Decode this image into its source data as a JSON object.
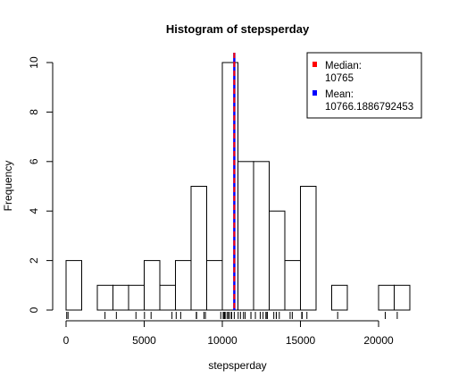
{
  "chart_data": {
    "type": "bar",
    "title": "Histogram of stepsperday",
    "xlabel": "stepsperday",
    "ylabel": "Frequency",
    "xlim": [
      0,
      22000
    ],
    "ylim": [
      0,
      10
    ],
    "x_ticks": [
      "0",
      "5000",
      "10000",
      "15000",
      "20000"
    ],
    "y_ticks": [
      "0",
      "2",
      "4",
      "6",
      "8",
      "10"
    ],
    "bin_width": 1000,
    "bin_starts": [
      0,
      1000,
      2000,
      3000,
      4000,
      5000,
      6000,
      7000,
      8000,
      9000,
      10000,
      11000,
      12000,
      13000,
      14000,
      15000,
      16000,
      17000,
      18000,
      19000,
      20000,
      21000
    ],
    "values": [
      2,
      0,
      1,
      1,
      1,
      2,
      1,
      2,
      5,
      2,
      10,
      6,
      6,
      4,
      2,
      5,
      0,
      1,
      0,
      0,
      1,
      1
    ],
    "rug": [
      41,
      126,
      2492,
      3219,
      4472,
      5018,
      5441,
      6778,
      7047,
      7336,
      8334,
      8355,
      8821,
      8918,
      9900,
      10056,
      10119,
      10139,
      10183,
      10304,
      10395,
      10439,
      10571,
      10600,
      10765,
      11015,
      11162,
      11352,
      11458,
      11829,
      11834,
      12116,
      12426,
      12608,
      12787,
      12811,
      12883,
      13294,
      13452,
      13460,
      13646,
      14339,
      14478,
      15084,
      15098,
      15110,
      15414,
      17382,
      20427,
      21194
    ],
    "median": 10765,
    "mean": 10766.1886792453,
    "median_color": "#ff0000",
    "mean_color": "#0000ff",
    "legend_position": "top-right",
    "legend": [
      {
        "label": "Median:",
        "value": "10765",
        "color": "#ff0000"
      },
      {
        "label": "Mean:",
        "value": "10766.1886792453",
        "color": "#0000ff"
      }
    ]
  }
}
